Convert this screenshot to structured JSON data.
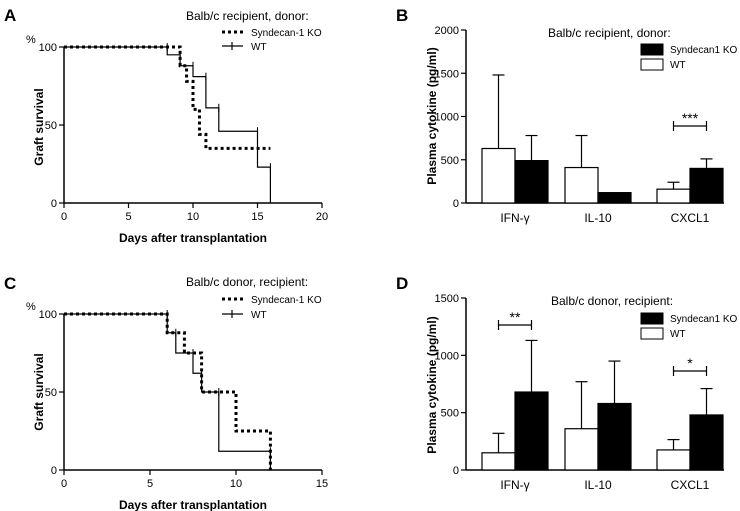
{
  "panels": [
    {
      "id": "A",
      "letter": "A",
      "type": "survival",
      "title": "Balb/c recipient, donor:",
      "ylabel": "Graft survival",
      "yunit": "%",
      "xlabel": "Days after transplantation",
      "xticks": [
        "0",
        "5",
        "10",
        "15",
        "20"
      ],
      "yticks": [
        "0",
        "50",
        "100"
      ]
    },
    {
      "id": "B",
      "letter": "B",
      "type": "bar",
      "title": "Balb/c recipient, donor:",
      "ylabel": "Plasma cytokine (pg/ml)",
      "yticks": [
        "0",
        "500",
        "1000",
        "1500",
        "2000"
      ],
      "categories": [
        "IFN-γ",
        "IL-10",
        "CXCL1"
      ],
      "sig": "***"
    },
    {
      "id": "C",
      "letter": "C",
      "type": "survival",
      "title": "Balb/c donor, recipient:",
      "ylabel": "Graft survival",
      "yunit": "%",
      "xlabel": "Days after transplantation",
      "xticks": [
        "0",
        "5",
        "10",
        "15"
      ],
      "yticks": [
        "0",
        "50",
        "100"
      ]
    },
    {
      "id": "D",
      "letter": "D",
      "type": "bar",
      "title": "Balb/c donor, recipient:",
      "ylabel": "Plasma cytokine (pg/ml)",
      "yticks": [
        "0",
        "500",
        "1000",
        "1500"
      ],
      "categories": [
        "IFN-γ",
        "IL-10",
        "CXCL1"
      ],
      "sig1": "**",
      "sig2": "*"
    }
  ],
  "chart_data": [
    {
      "panel": "A",
      "type": "line",
      "subtype": "kaplan-meier",
      "title": "Balb/c recipient, donor:",
      "xlabel": "Days after transplantation",
      "ylabel": "Graft survival (%)",
      "xlim": [
        0,
        20
      ],
      "ylim": [
        0,
        100
      ],
      "series": [
        {
          "name": "Syndecan-1 KO",
          "style": "dotted",
          "x": [
            0,
            9,
            9,
            9.5,
            9.5,
            10,
            10,
            10.5,
            10.5,
            11,
            11,
            12,
            12,
            16
          ],
          "y": [
            100,
            100,
            88,
            88,
            78,
            78,
            60,
            60,
            44,
            44,
            35,
            35,
            35,
            35
          ]
        },
        {
          "name": "WT",
          "style": "solid",
          "x": [
            0,
            8,
            8,
            9,
            9,
            10,
            10,
            11,
            11,
            12,
            12,
            15,
            15,
            16,
            16
          ],
          "y": [
            100,
            100,
            95,
            95,
            88,
            88,
            81,
            81,
            61,
            61,
            46,
            46,
            23,
            23,
            0
          ]
        }
      ]
    },
    {
      "panel": "B",
      "type": "bar",
      "title": "Balb/c recipient, donor:",
      "ylabel": "Plasma cytokine (pg/ml)",
      "ylim": [
        0,
        2000
      ],
      "categories": [
        "IFN-γ",
        "IL-10",
        "CXCL1"
      ],
      "series": [
        {
          "name": "WT",
          "fill": "white",
          "values": [
            630,
            410,
            160
          ],
          "error": [
            850,
            370,
            80
          ]
        },
        {
          "name": "Syndecan1 KO",
          "fill": "black",
          "values": [
            490,
            120,
            400
          ],
          "error": [
            290,
            0,
            110
          ]
        }
      ],
      "annotations": [
        {
          "text": "***",
          "category": "CXCL1"
        }
      ]
    },
    {
      "panel": "C",
      "type": "line",
      "subtype": "kaplan-meier",
      "title": "Balb/c donor, recipient:",
      "xlabel": "Days after transplantation",
      "ylabel": "Graft survival (%)",
      "xlim": [
        0,
        15
      ],
      "ylim": [
        0,
        100
      ],
      "series": [
        {
          "name": "Syndecan-1 KO",
          "style": "dotted",
          "x": [
            0,
            6,
            6,
            7,
            7,
            8,
            8,
            10,
            10,
            12,
            12
          ],
          "y": [
            100,
            100,
            88,
            88,
            75,
            75,
            50,
            50,
            25,
            25,
            0
          ]
        },
        {
          "name": "WT",
          "style": "solid",
          "x": [
            0,
            6,
            6,
            6.5,
            6.5,
            7.5,
            7.5,
            8,
            8,
            9,
            9,
            12,
            12
          ],
          "y": [
            100,
            100,
            88,
            88,
            75,
            75,
            62,
            62,
            50,
            50,
            12,
            12,
            0
          ]
        }
      ]
    },
    {
      "panel": "D",
      "type": "bar",
      "title": "Balb/c donor, recipient:",
      "ylabel": "Plasma cytokine (pg/ml)",
      "ylim": [
        0,
        1500
      ],
      "categories": [
        "IFN-γ",
        "IL-10",
        "CXCL1"
      ],
      "series": [
        {
          "name": "WT",
          "fill": "white",
          "values": [
            150,
            360,
            175
          ],
          "error": [
            170,
            410,
            90
          ]
        },
        {
          "name": "Syndecan1 KO",
          "fill": "black",
          "values": [
            680,
            580,
            480
          ],
          "error": [
            450,
            370,
            230
          ]
        }
      ],
      "annotations": [
        {
          "text": "**",
          "category": "IFN-γ"
        },
        {
          "text": "*",
          "category": "CXCL1"
        }
      ]
    }
  ],
  "legend_a_ko": "Syndecan-1 KO",
  "legend_a_wt": "WT",
  "legend_b_ko": "Syndecan1 KO",
  "legend_b_wt": "WT",
  "legend_c_ko": "Syndecan-1 KO",
  "legend_c_wt": "WT",
  "legend_d_ko": "Syndecan1 KO",
  "legend_d_wt": "WT"
}
